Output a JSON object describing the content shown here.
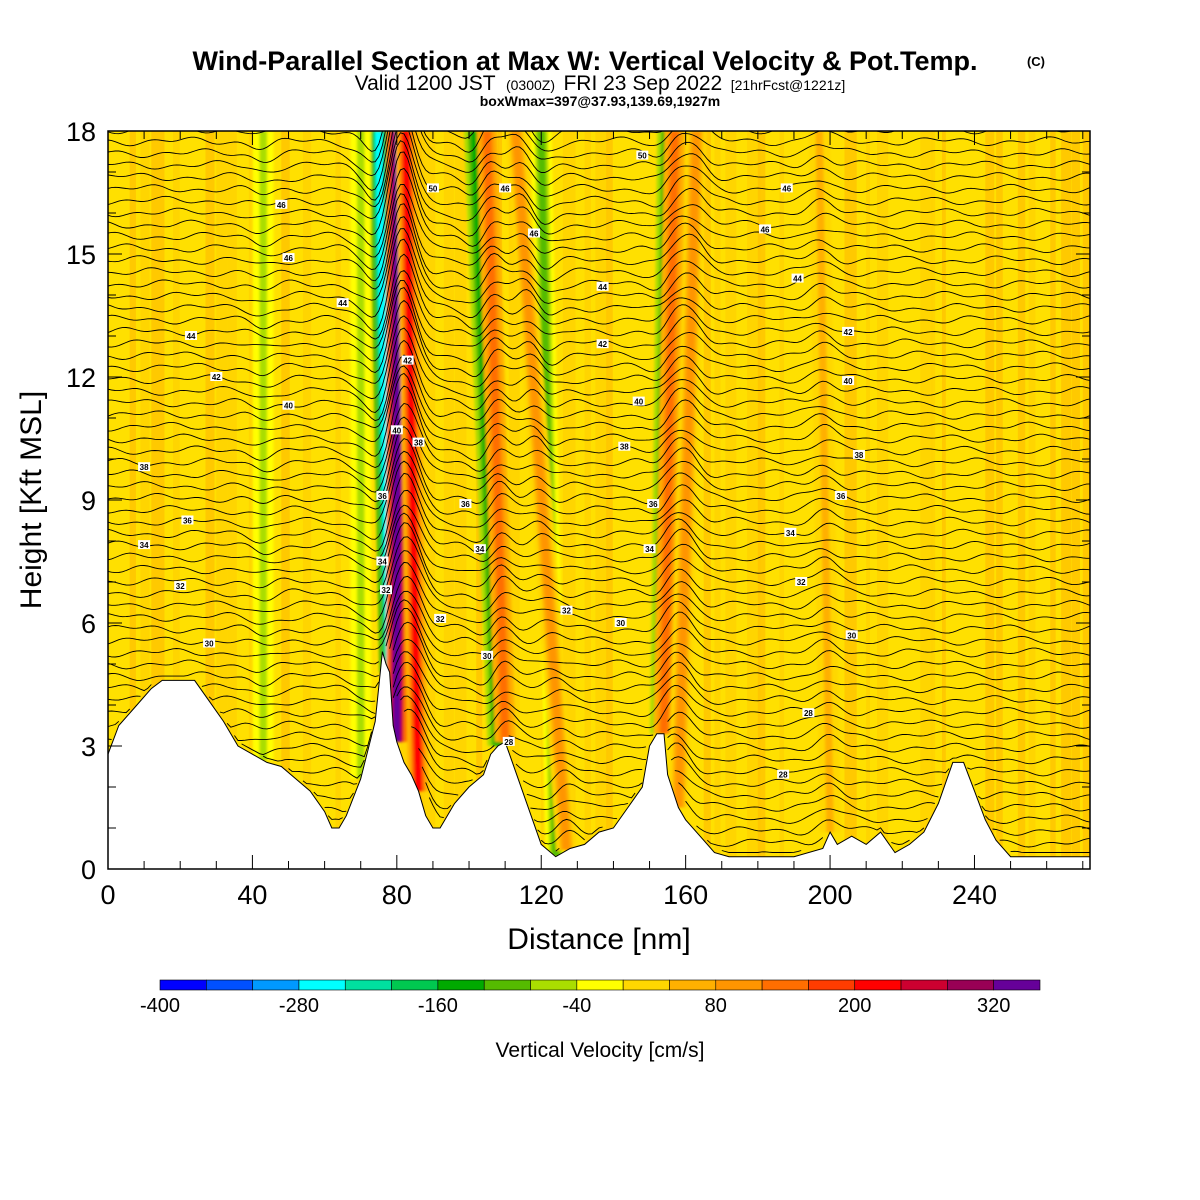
{
  "title": {
    "main": "Wind-Parallel Section at Max W: Vertical Velocity & Pot.Temp.",
    "copyright": "(C)",
    "valid_prefix": "Valid 1200 JST",
    "utc": "(0300Z)",
    "valid_date": "FRI 23 Sep 2022",
    "forecast": "[21hrFcst@1221z]",
    "box": "boxWmax=397@37.93,139.69,1927m"
  },
  "chart_data": {
    "type": "heatmap",
    "xlabel": "Distance [nm]",
    "ylabel": "Height [Kft MSL]",
    "xlim": [
      0,
      272
    ],
    "ylim": [
      0,
      18
    ],
    "xticks": [
      0,
      40,
      80,
      120,
      160,
      200,
      240
    ],
    "yticks": [
      0,
      3,
      6,
      9,
      12,
      15,
      18
    ],
    "colorbar": {
      "label": "Vertical Velocity [cm/s]",
      "range": [
        -400,
        360
      ],
      "step": 40,
      "tick_values": [
        -400,
        -280,
        -160,
        -40,
        80,
        200,
        320
      ],
      "tick_labels": [
        "-400",
        "-280",
        "-160",
        "-40",
        "80",
        "200",
        "320"
      ],
      "colors": [
        "#0000ff",
        "#0050ff",
        "#0099ff",
        "#00ffff",
        "#00e0a0",
        "#00c850",
        "#00aa00",
        "#55bb00",
        "#aadd00",
        "#ffff00",
        "#ffd700",
        "#ffb000",
        "#ff9500",
        "#ff6e00",
        "#ff3c00",
        "#ff0000",
        "#cc0030",
        "#990055",
        "#660099"
      ]
    },
    "terrain_kft": [
      [
        0,
        2.8
      ],
      [
        3,
        3.5
      ],
      [
        8,
        4.0
      ],
      [
        12,
        4.4
      ],
      [
        15,
        4.6
      ],
      [
        20,
        4.6
      ],
      [
        24,
        4.6
      ],
      [
        28,
        4.1
      ],
      [
        32,
        3.6
      ],
      [
        36,
        3.0
      ],
      [
        40,
        2.8
      ],
      [
        44,
        2.6
      ],
      [
        48,
        2.5
      ],
      [
        52,
        2.2
      ],
      [
        56,
        1.9
      ],
      [
        60,
        1.4
      ],
      [
        62,
        1.0
      ],
      [
        64,
        1.0
      ],
      [
        66,
        1.3
      ],
      [
        70,
        2.2
      ],
      [
        74,
        3.6
      ],
      [
        76,
        5.3
      ],
      [
        77,
        5.0
      ],
      [
        78,
        4.8
      ],
      [
        79,
        3.5
      ],
      [
        80,
        3.1
      ],
      [
        82,
        2.6
      ],
      [
        84,
        2.3
      ],
      [
        86,
        1.9
      ],
      [
        88,
        1.3
      ],
      [
        90,
        1.0
      ],
      [
        92,
        1.0
      ],
      [
        96,
        1.6
      ],
      [
        100,
        2.0
      ],
      [
        104,
        2.3
      ],
      [
        106,
        2.8
      ],
      [
        108,
        3.0
      ],
      [
        110,
        3.1
      ],
      [
        112,
        2.6
      ],
      [
        116,
        1.6
      ],
      [
        120,
        0.6
      ],
      [
        124,
        0.3
      ],
      [
        128,
        0.5
      ],
      [
        132,
        0.6
      ],
      [
        136,
        0.9
      ],
      [
        140,
        1.0
      ],
      [
        144,
        1.5
      ],
      [
        148,
        2.0
      ],
      [
        150,
        3.0
      ],
      [
        152,
        3.3
      ],
      [
        154,
        3.3
      ],
      [
        155,
        2.3
      ],
      [
        158,
        1.5
      ],
      [
        160,
        1.2
      ],
      [
        164,
        0.8
      ],
      [
        168,
        0.4
      ],
      [
        172,
        0.3
      ],
      [
        180,
        0.3
      ],
      [
        190,
        0.3
      ],
      [
        198,
        0.5
      ],
      [
        200,
        0.9
      ],
      [
        202,
        0.6
      ],
      [
        206,
        0.8
      ],
      [
        210,
        0.6
      ],
      [
        214,
        0.9
      ],
      [
        218,
        0.4
      ],
      [
        222,
        0.6
      ],
      [
        226,
        0.9
      ],
      [
        230,
        1.6
      ],
      [
        234,
        2.6
      ],
      [
        237,
        2.6
      ],
      [
        240,
        1.9
      ],
      [
        243,
        1.2
      ],
      [
        246,
        0.7
      ],
      [
        250,
        0.3
      ],
      [
        256,
        0.3
      ],
      [
        264,
        0.3
      ],
      [
        272,
        0.3
      ]
    ],
    "updraft_columns": [
      {
        "x_base": 80.0,
        "x_top": 80.0,
        "w": 397
      },
      {
        "x_base": 86.0,
        "x_top": 82.5,
        "w": 200
      },
      {
        "x_base": 110.0,
        "x_top": 105.0,
        "w": 130
      },
      {
        "x_base": 127.0,
        "x_top": 113.0,
        "w": 100
      },
      {
        "x_base": 154.0,
        "x_top": 157.0,
        "w": 140
      },
      {
        "x_base": 158.0,
        "x_top": 163.0,
        "w": 110
      },
      {
        "x_base": 200.0,
        "x_top": 197.0,
        "w": 60
      }
    ],
    "downdraft_columns": [
      {
        "x_base": 78.0,
        "x_top": 75.0,
        "w": -280
      },
      {
        "x_base": 108.0,
        "x_top": 101.5,
        "w": -150
      },
      {
        "x_base": 124.0,
        "x_top": 120.0,
        "w": -100
      },
      {
        "x_base": 153.0,
        "x_top": 155.0,
        "w": -140
      },
      {
        "x_base": 43.0,
        "x_top": 43.0,
        "w": -60
      },
      {
        "x_base": 70.0,
        "x_top": 70.0,
        "w": -60
      }
    ],
    "theta_contour_labels": [
      {
        "x": 90,
        "y": 16.6,
        "text": "50"
      },
      {
        "x": 148,
        "y": 17.4,
        "text": "50"
      },
      {
        "x": 48,
        "y": 16.2,
        "text": "46"
      },
      {
        "x": 110,
        "y": 16.6,
        "text": "46"
      },
      {
        "x": 188,
        "y": 16.6,
        "text": "46"
      },
      {
        "x": 50,
        "y": 14.9,
        "text": "46"
      },
      {
        "x": 118,
        "y": 15.5,
        "text": "46"
      },
      {
        "x": 182,
        "y": 15.6,
        "text": "46"
      },
      {
        "x": 65,
        "y": 13.8,
        "text": "44"
      },
      {
        "x": 23,
        "y": 13.0,
        "text": "44"
      },
      {
        "x": 137,
        "y": 14.2,
        "text": "44"
      },
      {
        "x": 191,
        "y": 14.4,
        "text": "44"
      },
      {
        "x": 83,
        "y": 12.4,
        "text": "42"
      },
      {
        "x": 30,
        "y": 12.0,
        "text": "42"
      },
      {
        "x": 137,
        "y": 12.8,
        "text": "42"
      },
      {
        "x": 205,
        "y": 13.1,
        "text": "42"
      },
      {
        "x": 50,
        "y": 11.3,
        "text": "40"
      },
      {
        "x": 80,
        "y": 10.7,
        "text": "40"
      },
      {
        "x": 147,
        "y": 11.4,
        "text": "40"
      },
      {
        "x": 205,
        "y": 11.9,
        "text": "40"
      },
      {
        "x": 86,
        "y": 10.4,
        "text": "38"
      },
      {
        "x": 10,
        "y": 9.8,
        "text": "38"
      },
      {
        "x": 143,
        "y": 10.3,
        "text": "38"
      },
      {
        "x": 208,
        "y": 10.1,
        "text": "38"
      },
      {
        "x": 76,
        "y": 9.1,
        "text": "36"
      },
      {
        "x": 22,
        "y": 8.5,
        "text": "36"
      },
      {
        "x": 99,
        "y": 8.9,
        "text": "36"
      },
      {
        "x": 151,
        "y": 8.9,
        "text": "36"
      },
      {
        "x": 203,
        "y": 9.1,
        "text": "36"
      },
      {
        "x": 76,
        "y": 7.5,
        "text": "34"
      },
      {
        "x": 10,
        "y": 7.9,
        "text": "34"
      },
      {
        "x": 103,
        "y": 7.8,
        "text": "34"
      },
      {
        "x": 150,
        "y": 7.8,
        "text": "34"
      },
      {
        "x": 189,
        "y": 8.2,
        "text": "34"
      },
      {
        "x": 77,
        "y": 6.8,
        "text": "32"
      },
      {
        "x": 20,
        "y": 6.9,
        "text": "32"
      },
      {
        "x": 92,
        "y": 6.1,
        "text": "32"
      },
      {
        "x": 127,
        "y": 6.3,
        "text": "32"
      },
      {
        "x": 192,
        "y": 7.0,
        "text": "32"
      },
      {
        "x": 28,
        "y": 5.5,
        "text": "30"
      },
      {
        "x": 105,
        "y": 5.2,
        "text": "30"
      },
      {
        "x": 142,
        "y": 6.0,
        "text": "30"
      },
      {
        "x": 206,
        "y": 5.7,
        "text": "30"
      },
      {
        "x": 111,
        "y": 3.1,
        "text": "28"
      },
      {
        "x": 194,
        "y": 3.8,
        "text": "28"
      },
      {
        "x": 187,
        "y": 2.3,
        "text": "28"
      }
    ]
  }
}
